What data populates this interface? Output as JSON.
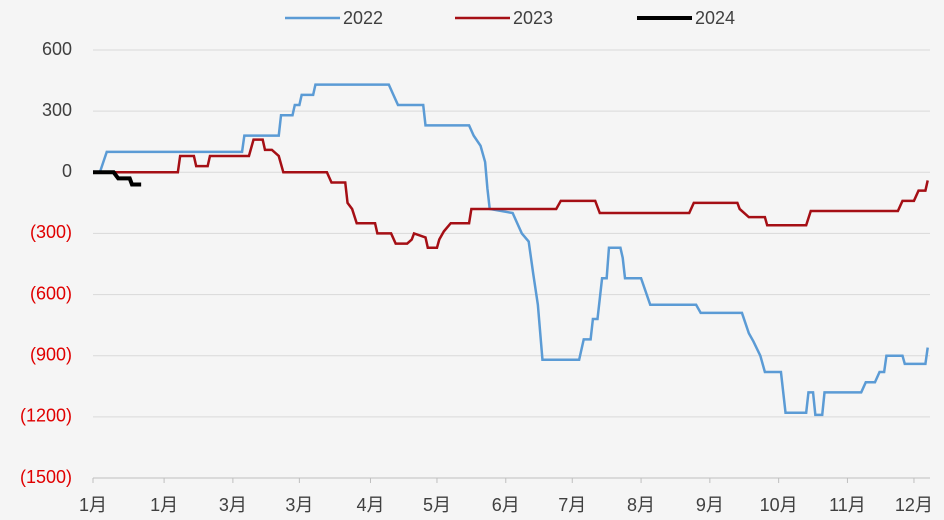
{
  "chart_data": {
    "type": "line",
    "xlim": [
      0,
      365
    ],
    "xticks": [
      {
        "value": 0,
        "label": "1月"
      },
      {
        "value": 31,
        "label": "1月"
      },
      {
        "value": 61,
        "label": "3月"
      },
      {
        "value": 90,
        "label": "3月"
      },
      {
        "value": 121,
        "label": "4月"
      },
      {
        "value": 150,
        "label": "5月"
      },
      {
        "value": 180,
        "label": "6月"
      },
      {
        "value": 209,
        "label": "7月"
      },
      {
        "value": 239,
        "label": "8月"
      },
      {
        "value": 269,
        "label": "9月"
      },
      {
        "value": 299,
        "label": "10月"
      },
      {
        "value": 329,
        "label": "11月"
      },
      {
        "value": 358,
        "label": "12月"
      }
    ],
    "ylim": [
      -1500,
      600
    ],
    "yticks": [
      600,
      300,
      0,
      {
        "value": -300,
        "label": "(300)"
      },
      {
        "value": -600,
        "label": "(600)"
      },
      {
        "value": -900,
        "label": "(900)"
      },
      {
        "value": -1200,
        "label": "(1200)"
      },
      {
        "value": -1500,
        "label": "(1500)"
      }
    ],
    "negative_tick_color": "#e00000",
    "grid": true,
    "legend": "top",
    "series": [
      {
        "name": "2022",
        "color": "#5b9bd5",
        "x": [
          3,
          6,
          65,
          66,
          81,
          82,
          87,
          88,
          90,
          91,
          96,
          97,
          129,
          131,
          133,
          144,
          145,
          164,
          166,
          169,
          171,
          172,
          173,
          183,
          185,
          187,
          190,
          192,
          194,
          196,
          212,
          214,
          217,
          218,
          220,
          222,
          224,
          225,
          230,
          231,
          232,
          239,
          243,
          263,
          265,
          283,
          286,
          288,
          291,
          293,
          300,
          302,
          311,
          312,
          314,
          315,
          318,
          319,
          335,
          337,
          341,
          343,
          345,
          346,
          353,
          354,
          363,
          364
        ],
        "values": [
          0,
          100,
          100,
          180,
          180,
          280,
          280,
          330,
          330,
          380,
          380,
          430,
          430,
          380,
          330,
          330,
          230,
          230,
          180,
          130,
          50,
          -80,
          -180,
          -200,
          -250,
          -300,
          -340,
          -500,
          -650,
          -920,
          -920,
          -820,
          -820,
          -720,
          -720,
          -520,
          -520,
          -370,
          -370,
          -420,
          -520,
          -520,
          -650,
          -650,
          -690,
          -690,
          -790,
          -830,
          -900,
          -980,
          -980,
          -1180,
          -1180,
          -1080,
          -1080,
          -1190,
          -1190,
          -1080,
          -1080,
          -1030,
          -1030,
          -980,
          -980,
          -900,
          -900,
          -940,
          -940,
          -860
        ]
      },
      {
        "name": "2023",
        "color": "#a50f15",
        "x": [
          6,
          37,
          38,
          44,
          45,
          50,
          51,
          68,
          70,
          74,
          75,
          78,
          81,
          83,
          102,
          104,
          110,
          111,
          113,
          115,
          123,
          124,
          130,
          132,
          137,
          139,
          140,
          145,
          146,
          150,
          151,
          153,
          156,
          164,
          165,
          202,
          204,
          219,
          221,
          260,
          262,
          281,
          282,
          286,
          293,
          294,
          311,
          313,
          351,
          353,
          358,
          360,
          363,
          364
        ],
        "values": [
          0,
          0,
          80,
          80,
          30,
          30,
          80,
          80,
          160,
          160,
          110,
          110,
          80,
          0,
          0,
          -50,
          -50,
          -150,
          -180,
          -250,
          -250,
          -300,
          -300,
          -350,
          -350,
          -330,
          -300,
          -320,
          -370,
          -370,
          -330,
          -290,
          -250,
          -250,
          -180,
          -180,
          -140,
          -140,
          -200,
          -200,
          -150,
          -150,
          -180,
          -220,
          -220,
          -260,
          -260,
          -190,
          -190,
          -140,
          -140,
          -90,
          -90,
          -40
        ]
      },
      {
        "name": "2024",
        "color": "#000000",
        "width": 4,
        "x": [
          0,
          9,
          11,
          16,
          17,
          21
        ],
        "values": [
          0,
          0,
          -30,
          -30,
          -60,
          -60
        ]
      }
    ]
  }
}
